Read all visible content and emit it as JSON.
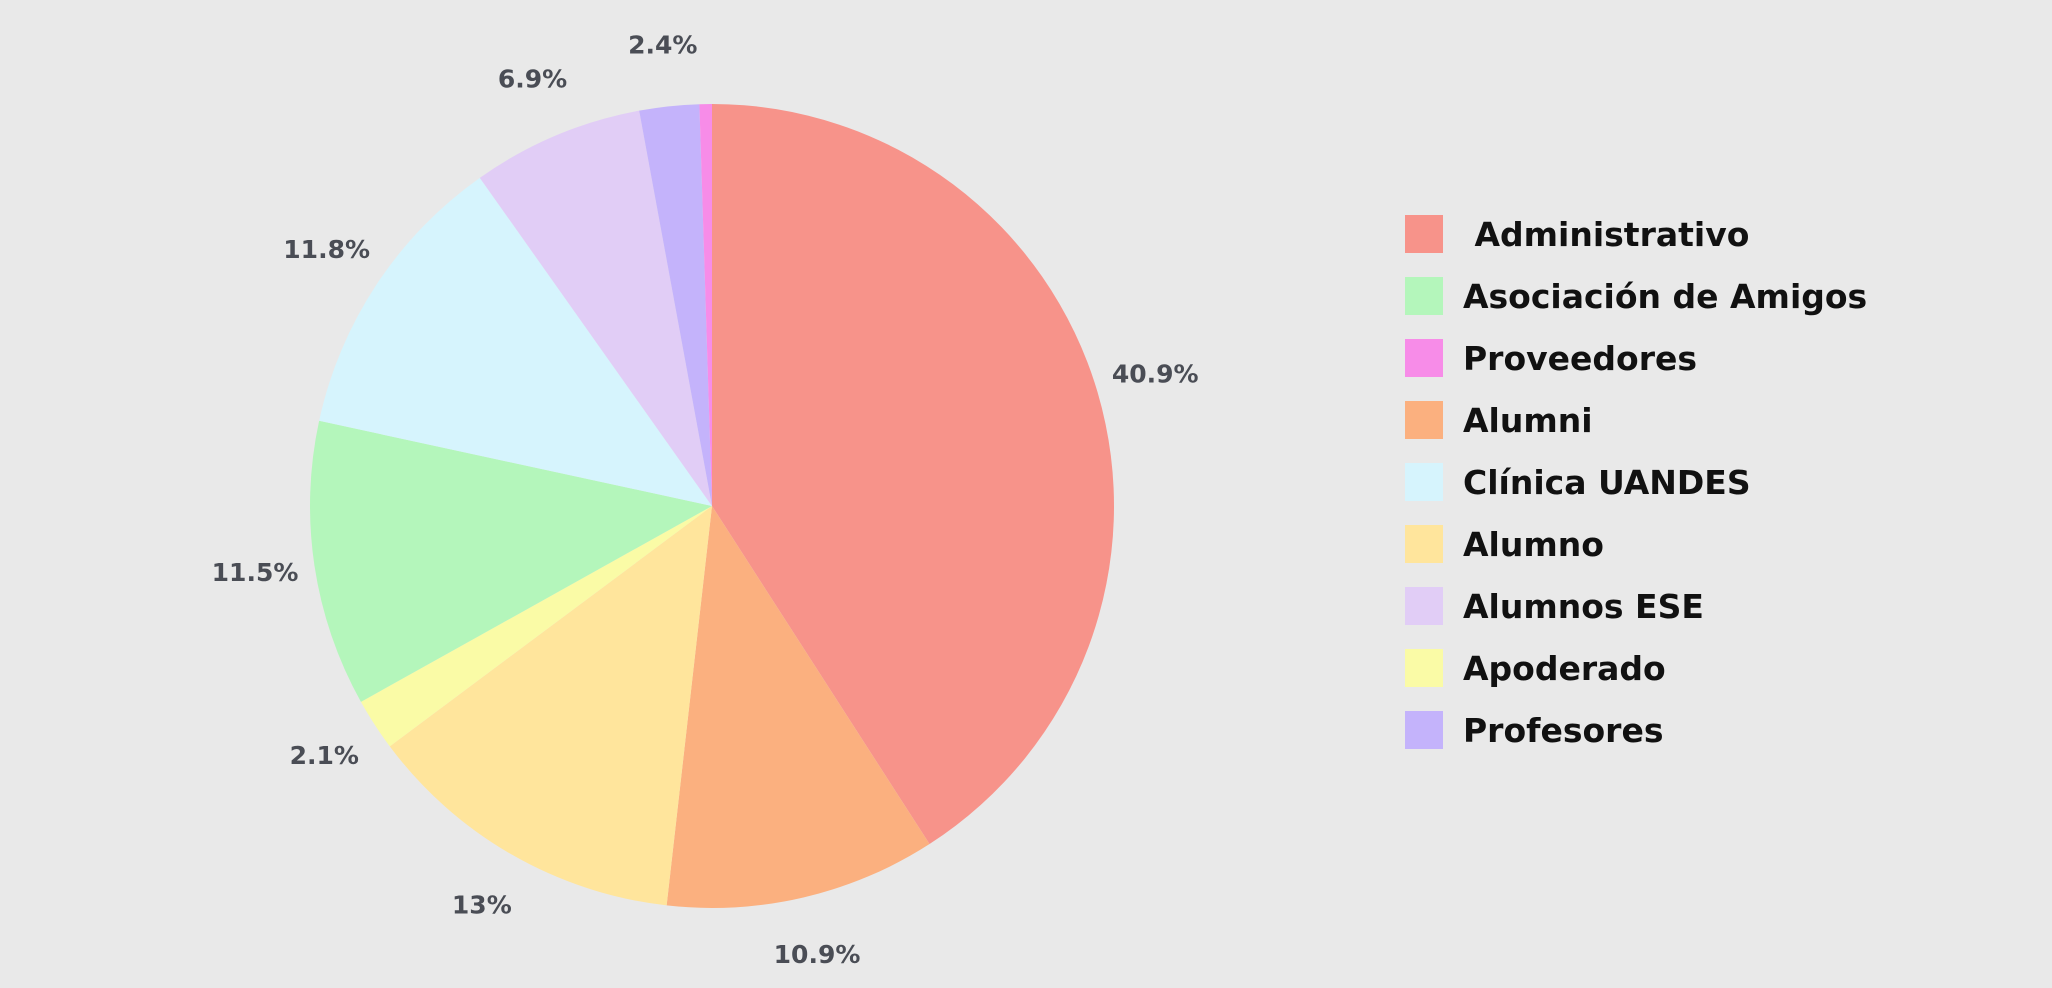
{
  "chart_data": {
    "type": "pie",
    "title": "",
    "start_angle_deg": 90,
    "direction": "clockwise",
    "legend_position": "right",
    "slices": [
      {
        "label": " Administrativo",
        "value": 40.9,
        "display": "40.9%",
        "color": "#f7938a"
      },
      {
        "label": "Alumni",
        "value": 10.9,
        "display": "10.9%",
        "color": "#fbb07f"
      },
      {
        "label": "Alumno",
        "value": 13.0,
        "display": "13%",
        "color": "#ffe59c"
      },
      {
        "label": "Apoderado",
        "value": 2.1,
        "display": "2.1%",
        "color": "#fafba6"
      },
      {
        "label": "Asociación de Amigos",
        "value": 11.5,
        "display": "11.5%",
        "color": "#b4f6bb"
      },
      {
        "label": "Clínica UANDES",
        "value": 11.8,
        "display": "11.8%",
        "color": "#d6f4fd"
      },
      {
        "label": "Alumnos ESE",
        "value": 6.9,
        "display": "6.9%",
        "color": "#e1cdf6"
      },
      {
        "label": "Profesores",
        "value": 2.4,
        "display": "2.4%",
        "color": "#c4b3fb"
      },
      {
        "label": "Proveedores",
        "value": 0.5,
        "display": "",
        "color": "#f78ce8"
      }
    ],
    "legend": [
      {
        "label": " Administrativo",
        "color": "#f7938a"
      },
      {
        "label": "Asociación de Amigos",
        "color": "#b4f6bb"
      },
      {
        "label": "Proveedores",
        "color": "#f78ce8"
      },
      {
        "label": "Alumni",
        "color": "#fbb07f"
      },
      {
        "label": "Clínica UANDES",
        "color": "#d6f4fd"
      },
      {
        "label": "Alumno",
        "color": "#ffe59c"
      },
      {
        "label": "Alumnos ESE",
        "color": "#e1cdf6"
      },
      {
        "label": "Apoderado",
        "color": "#fafba6"
      },
      {
        "label": "Profesores",
        "color": "#c4b3fb"
      }
    ]
  }
}
